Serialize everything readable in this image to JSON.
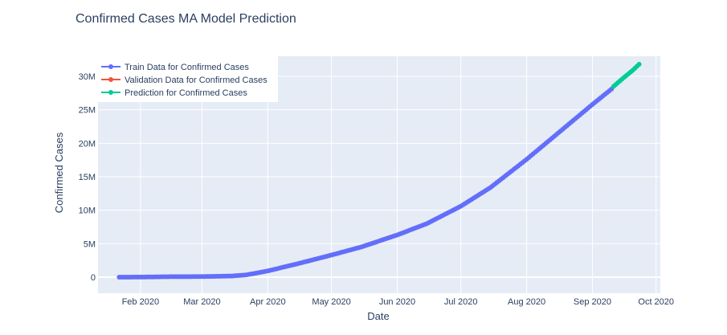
{
  "chart_data": {
    "type": "line",
    "title": "Confirmed Cases MA Model Prediction",
    "xlabel": "Date",
    "ylabel": "Confirmed Cases",
    "x_range": [
      "2020-01-12",
      "2020-10-03"
    ],
    "ylim": [
      -2400000,
      33000000
    ],
    "x_ticks": [
      {
        "date": "2020-02-01",
        "label": "Feb 2020"
      },
      {
        "date": "2020-03-01",
        "label": "Mar 2020"
      },
      {
        "date": "2020-04-01",
        "label": "Apr 2020"
      },
      {
        "date": "2020-05-01",
        "label": "May 2020"
      },
      {
        "date": "2020-06-01",
        "label": "Jun 2020"
      },
      {
        "date": "2020-07-01",
        "label": "Jul 2020"
      },
      {
        "date": "2020-08-01",
        "label": "Aug 2020"
      },
      {
        "date": "2020-09-01",
        "label": "Sep 2020"
      },
      {
        "date": "2020-10-01",
        "label": "Oct 2020"
      }
    ],
    "y_ticks": [
      {
        "value": 0,
        "label": "0"
      },
      {
        "value": 5000000,
        "label": "5M"
      },
      {
        "value": 10000000,
        "label": "10M"
      },
      {
        "value": 15000000,
        "label": "15M"
      },
      {
        "value": 20000000,
        "label": "20M"
      },
      {
        "value": 25000000,
        "label": "25M"
      },
      {
        "value": 30000000,
        "label": "30M"
      }
    ],
    "grid": true,
    "legend_position": "top-left",
    "series": [
      {
        "name": "Train Data for Confirmed Cases",
        "color": "#636efa",
        "mode": "lines+markers",
        "points": [
          [
            "2020-01-22",
            550
          ],
          [
            "2020-02-01",
            12000
          ],
          [
            "2020-02-15",
            69000
          ],
          [
            "2020-03-01",
            88000
          ],
          [
            "2020-03-15",
            170000
          ],
          [
            "2020-03-22",
            340000
          ],
          [
            "2020-04-01",
            930000
          ],
          [
            "2020-04-15",
            2000000
          ],
          [
            "2020-05-01",
            3300000
          ],
          [
            "2020-05-15",
            4500000
          ],
          [
            "2020-06-01",
            6300000
          ],
          [
            "2020-06-15",
            8000000
          ],
          [
            "2020-07-01",
            10600000
          ],
          [
            "2020-07-15",
            13400000
          ],
          [
            "2020-08-01",
            17600000
          ],
          [
            "2020-08-15",
            21300000
          ],
          [
            "2020-09-01",
            25800000
          ],
          [
            "2020-09-10",
            28100000
          ]
        ]
      },
      {
        "name": "Validation Data for Confirmed Cases",
        "color": "#ef553b",
        "mode": "lines+markers",
        "points": []
      },
      {
        "name": "Prediction for Confirmed Cases",
        "color": "#00cc96",
        "mode": "lines+markers",
        "points": [
          [
            "2020-09-11",
            28500000
          ],
          [
            "2020-09-15",
            29600000
          ],
          [
            "2020-09-20",
            30900000
          ],
          [
            "2020-09-23",
            31800000
          ]
        ]
      }
    ]
  }
}
